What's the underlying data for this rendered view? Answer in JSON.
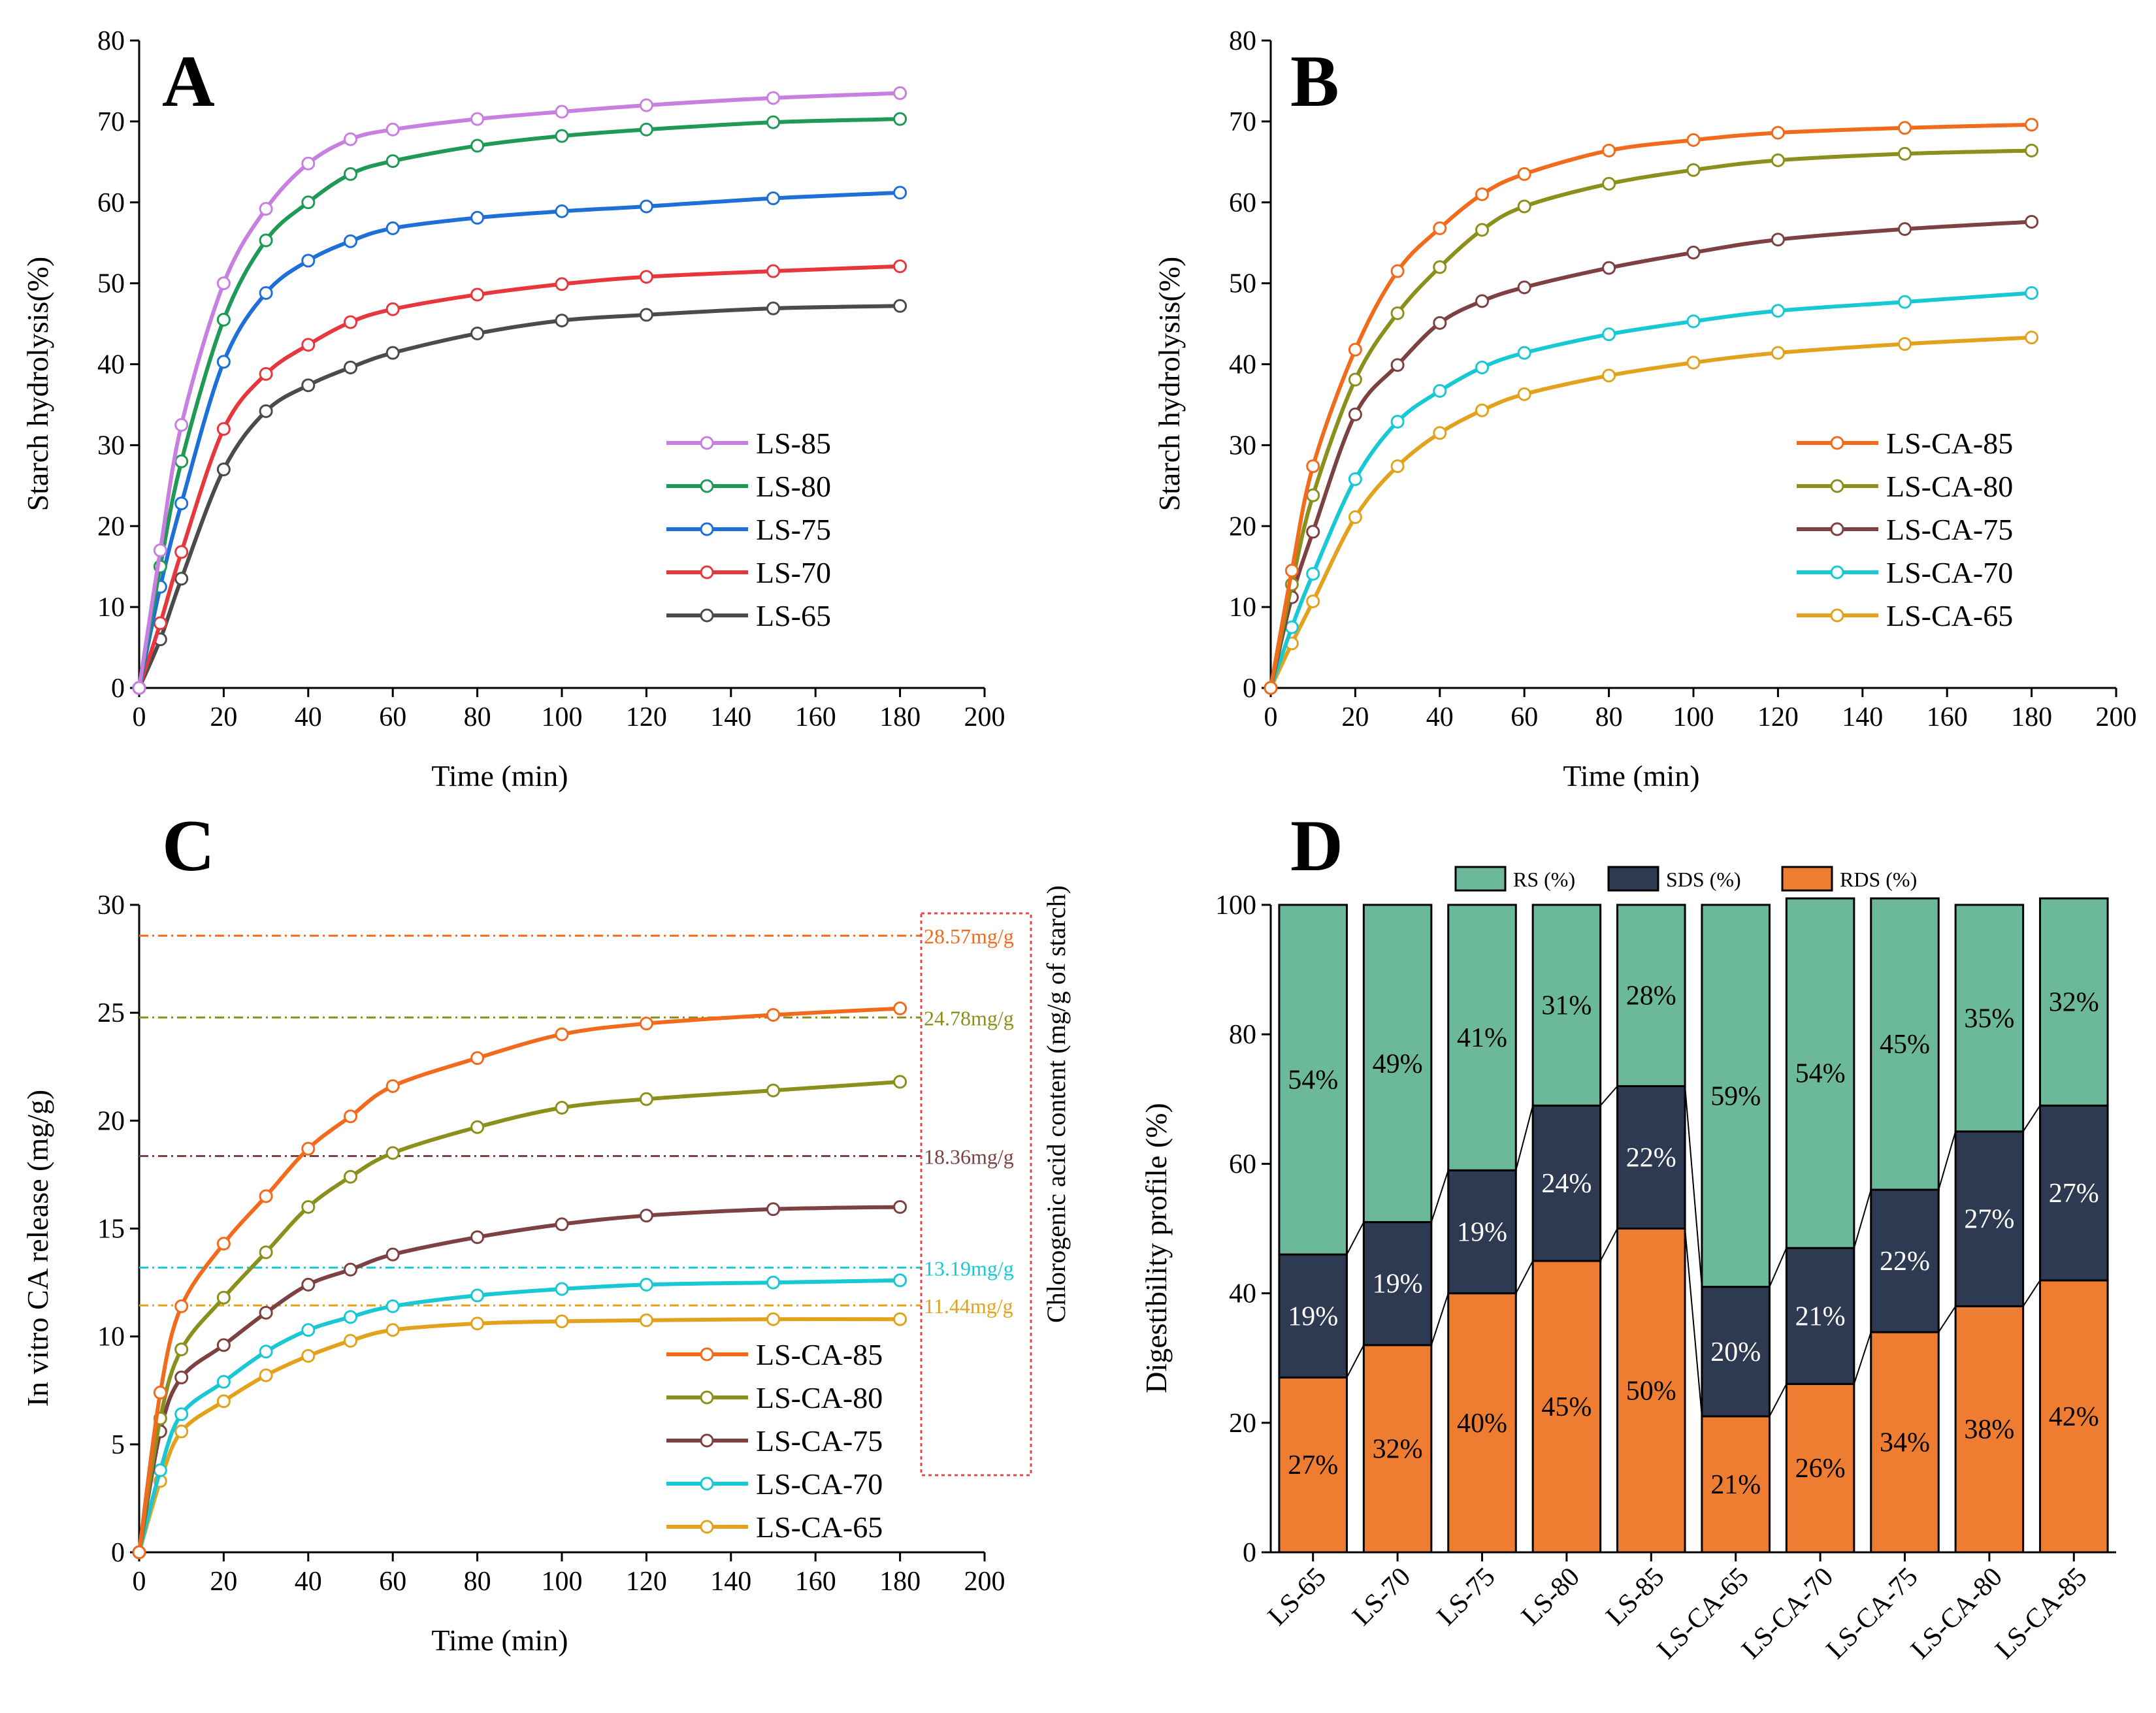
{
  "panels": {
    "A": "A",
    "B": "B",
    "C": "C",
    "D": "D"
  },
  "colors": {
    "ls85": "#c77fe0",
    "ls80": "#1f9a56",
    "ls75": "#1f6fd8",
    "ls70": "#e8373c",
    "ls65": "#4b4b4b",
    "lsca85": "#f26b1d",
    "lsca80": "#8b8f1c",
    "lsca75": "#7e4141",
    "lsca70": "#18c8d4",
    "lsca65": "#e3a21d",
    "rs": "#6cb89b",
    "sds": "#2e3a51",
    "rds": "#ee7d31",
    "box": "#e8454a"
  },
  "chart_data": [
    {
      "id": "A",
      "type": "line",
      "xlabel": "Time (min)",
      "ylabel": "Starch hydrolysis(%)",
      "xlim": [
        0,
        200
      ],
      "ylim": [
        0,
        80
      ],
      "xticks": [
        "0",
        "20",
        "40",
        "60",
        "80",
        "100",
        "120",
        "140",
        "160",
        "180",
        "200"
      ],
      "yticks": [
        "0",
        "10",
        "20",
        "30",
        "40",
        "50",
        "60",
        "70",
        "80"
      ],
      "x": [
        0,
        5,
        10,
        20,
        30,
        40,
        50,
        60,
        80,
        100,
        120,
        150,
        180
      ],
      "legend_position": "bottom-right",
      "series": [
        {
          "name": "LS-85",
          "color_key": "ls85",
          "values": [
            0,
            17,
            32.5,
            50,
            59.2,
            64.8,
            67.8,
            69,
            70.3,
            71.2,
            72,
            72.9,
            73.5
          ]
        },
        {
          "name": "LS-80",
          "color_key": "ls80",
          "values": [
            0,
            15,
            28,
            45.5,
            55.3,
            60,
            63.5,
            65.1,
            67,
            68.2,
            69,
            69.9,
            70.3
          ]
        },
        {
          "name": "LS-75",
          "color_key": "ls75",
          "values": [
            0,
            12.5,
            22.8,
            40.3,
            48.8,
            52.8,
            55.2,
            56.8,
            58.1,
            58.9,
            59.5,
            60.5,
            61.2
          ]
        },
        {
          "name": "LS-70",
          "color_key": "ls70",
          "values": [
            0,
            8,
            16.8,
            32,
            38.8,
            42.4,
            45.2,
            46.8,
            48.6,
            49.9,
            50.8,
            51.5,
            52.1
          ]
        },
        {
          "name": "LS-65",
          "color_key": "ls65",
          "values": [
            0,
            6,
            13.5,
            27,
            34.2,
            37.4,
            39.6,
            41.4,
            43.8,
            45.4,
            46.1,
            46.9,
            47.2
          ]
        }
      ]
    },
    {
      "id": "B",
      "type": "line",
      "xlabel": "Time (min)",
      "ylabel": "Starch hydrolysis(%)",
      "xlim": [
        0,
        200
      ],
      "ylim": [
        0,
        80
      ],
      "xticks": [
        "0",
        "20",
        "40",
        "60",
        "80",
        "100",
        "120",
        "140",
        "160",
        "180",
        "200"
      ],
      "yticks": [
        "0",
        "10",
        "20",
        "30",
        "40",
        "50",
        "60",
        "70",
        "80"
      ],
      "x": [
        0,
        5,
        10,
        20,
        30,
        40,
        50,
        60,
        80,
        100,
        120,
        150,
        180
      ],
      "legend_position": "bottom-right",
      "series": [
        {
          "name": "LS-CA-85",
          "color_key": "lsca85",
          "values": [
            0,
            14.5,
            27.4,
            41.8,
            51.5,
            56.8,
            61,
            63.5,
            66.4,
            67.7,
            68.6,
            69.2,
            69.6
          ]
        },
        {
          "name": "LS-CA-80",
          "color_key": "lsca80",
          "values": [
            0,
            12.8,
            23.8,
            38.1,
            46.3,
            52,
            56.6,
            59.5,
            62.3,
            64,
            65.2,
            66,
            66.4
          ]
        },
        {
          "name": "LS-CA-75",
          "color_key": "lsca75",
          "values": [
            0,
            11.2,
            19.3,
            33.8,
            39.9,
            45.1,
            47.8,
            49.5,
            51.9,
            53.8,
            55.4,
            56.7,
            57.6
          ]
        },
        {
          "name": "LS-CA-70",
          "color_key": "lsca70",
          "values": [
            0,
            7.5,
            14.1,
            25.8,
            32.9,
            36.7,
            39.6,
            41.4,
            43.7,
            45.3,
            46.6,
            47.7,
            48.8
          ]
        },
        {
          "name": "LS-CA-65",
          "color_key": "lsca65",
          "values": [
            0,
            5.5,
            10.7,
            21.1,
            27.4,
            31.5,
            34.3,
            36.3,
            38.6,
            40.2,
            41.4,
            42.5,
            43.3
          ]
        }
      ]
    },
    {
      "id": "C",
      "type": "line",
      "xlabel": "Time (min)",
      "ylabel": "In vitro CA release (mg/g)",
      "ylabel_right": "Chlorogenic acid content (mg/g of starch)",
      "xlim": [
        0,
        200
      ],
      "ylim": [
        0,
        30
      ],
      "xticks": [
        "0",
        "20",
        "40",
        "60",
        "80",
        "100",
        "120",
        "140",
        "160",
        "180",
        "200"
      ],
      "yticks": [
        "0",
        "5",
        "10",
        "15",
        "20",
        "25",
        "30"
      ],
      "x": [
        0,
        5,
        10,
        20,
        30,
        40,
        50,
        60,
        80,
        100,
        120,
        150,
        180
      ],
      "legend_position": "bottom-right",
      "reference_lines": [
        {
          "value": 28.57,
          "label": "28.57mg/g",
          "color_key": "lsca85"
        },
        {
          "value": 24.78,
          "label": "24.78mg/g",
          "color_key": "lsca80"
        },
        {
          "value": 18.36,
          "label": "18.36mg/g",
          "color_key": "lsca75"
        },
        {
          "value": 13.19,
          "label": "13.19mg/g",
          "color_key": "lsca70"
        },
        {
          "value": 11.44,
          "label": "11.44mg/g",
          "color_key": "lsca65"
        }
      ],
      "series": [
        {
          "name": "LS-CA-85",
          "color_key": "lsca85",
          "values": [
            0,
            7.4,
            11.4,
            14.3,
            16.5,
            18.7,
            20.2,
            21.6,
            22.9,
            24,
            24.5,
            24.9,
            25.2
          ]
        },
        {
          "name": "LS-CA-80",
          "color_key": "lsca80",
          "values": [
            0,
            6.2,
            9.4,
            11.8,
            13.9,
            16,
            17.4,
            18.5,
            19.7,
            20.6,
            21,
            21.4,
            21.8
          ]
        },
        {
          "name": "LS-CA-75",
          "color_key": "lsca75",
          "values": [
            0,
            5.6,
            8.1,
            9.6,
            11.1,
            12.4,
            13.1,
            13.8,
            14.6,
            15.2,
            15.6,
            15.9,
            16
          ]
        },
        {
          "name": "LS-CA-70",
          "color_key": "lsca70",
          "values": [
            0,
            3.8,
            6.4,
            7.9,
            9.3,
            10.3,
            10.9,
            11.4,
            11.9,
            12.2,
            12.4,
            12.5,
            12.6
          ]
        },
        {
          "name": "LS-CA-65",
          "color_key": "lsca65",
          "values": [
            0,
            3.3,
            5.6,
            7,
            8.2,
            9.1,
            9.8,
            10.3,
            10.6,
            10.7,
            10.75,
            10.8,
            10.8
          ]
        }
      ]
    },
    {
      "id": "D",
      "type": "bar",
      "stacked": true,
      "ylabel": "Digestibility profile (%)",
      "ylim": [
        0,
        100
      ],
      "yticks": [
        "0",
        "20",
        "40",
        "60",
        "80",
        "100"
      ],
      "legend_position": "top",
      "categories": [
        "LS-65",
        "LS-70",
        "LS-75",
        "LS-80",
        "LS-85",
        "LS-CA-65",
        "LS-CA-70",
        "LS-CA-75",
        "LS-CA-80",
        "LS-CA-85"
      ],
      "series": [
        {
          "name": "RDS (%)",
          "color_key": "rds",
          "values": [
            27,
            32,
            40,
            45,
            50,
            21,
            26,
            34,
            38,
            42
          ],
          "labels": [
            "27%",
            "32%",
            "40%",
            "45%",
            "50%",
            "21%",
            "26%",
            "34%",
            "38%",
            "42%"
          ]
        },
        {
          "name": "SDS (%)",
          "color_key": "sds",
          "values": [
            19,
            19,
            19,
            24,
            22,
            20,
            21,
            22,
            27,
            27
          ],
          "labels": [
            "19%",
            "19%",
            "19%",
            "24%",
            "22%",
            "20%",
            "21%",
            "22%",
            "27%",
            "27%"
          ]
        },
        {
          "name": "RS (%)",
          "color_key": "rs",
          "values": [
            54,
            49,
            41,
            31,
            28,
            59,
            54,
            45,
            35,
            32
          ],
          "labels": [
            "54%",
            "49%",
            "41%",
            "31%",
            "28%",
            "59%",
            "54%",
            "45%",
            "35%",
            "32%"
          ]
        }
      ],
      "legend_order": [
        "RS (%)",
        "SDS (%)",
        "RDS (%)"
      ]
    }
  ]
}
